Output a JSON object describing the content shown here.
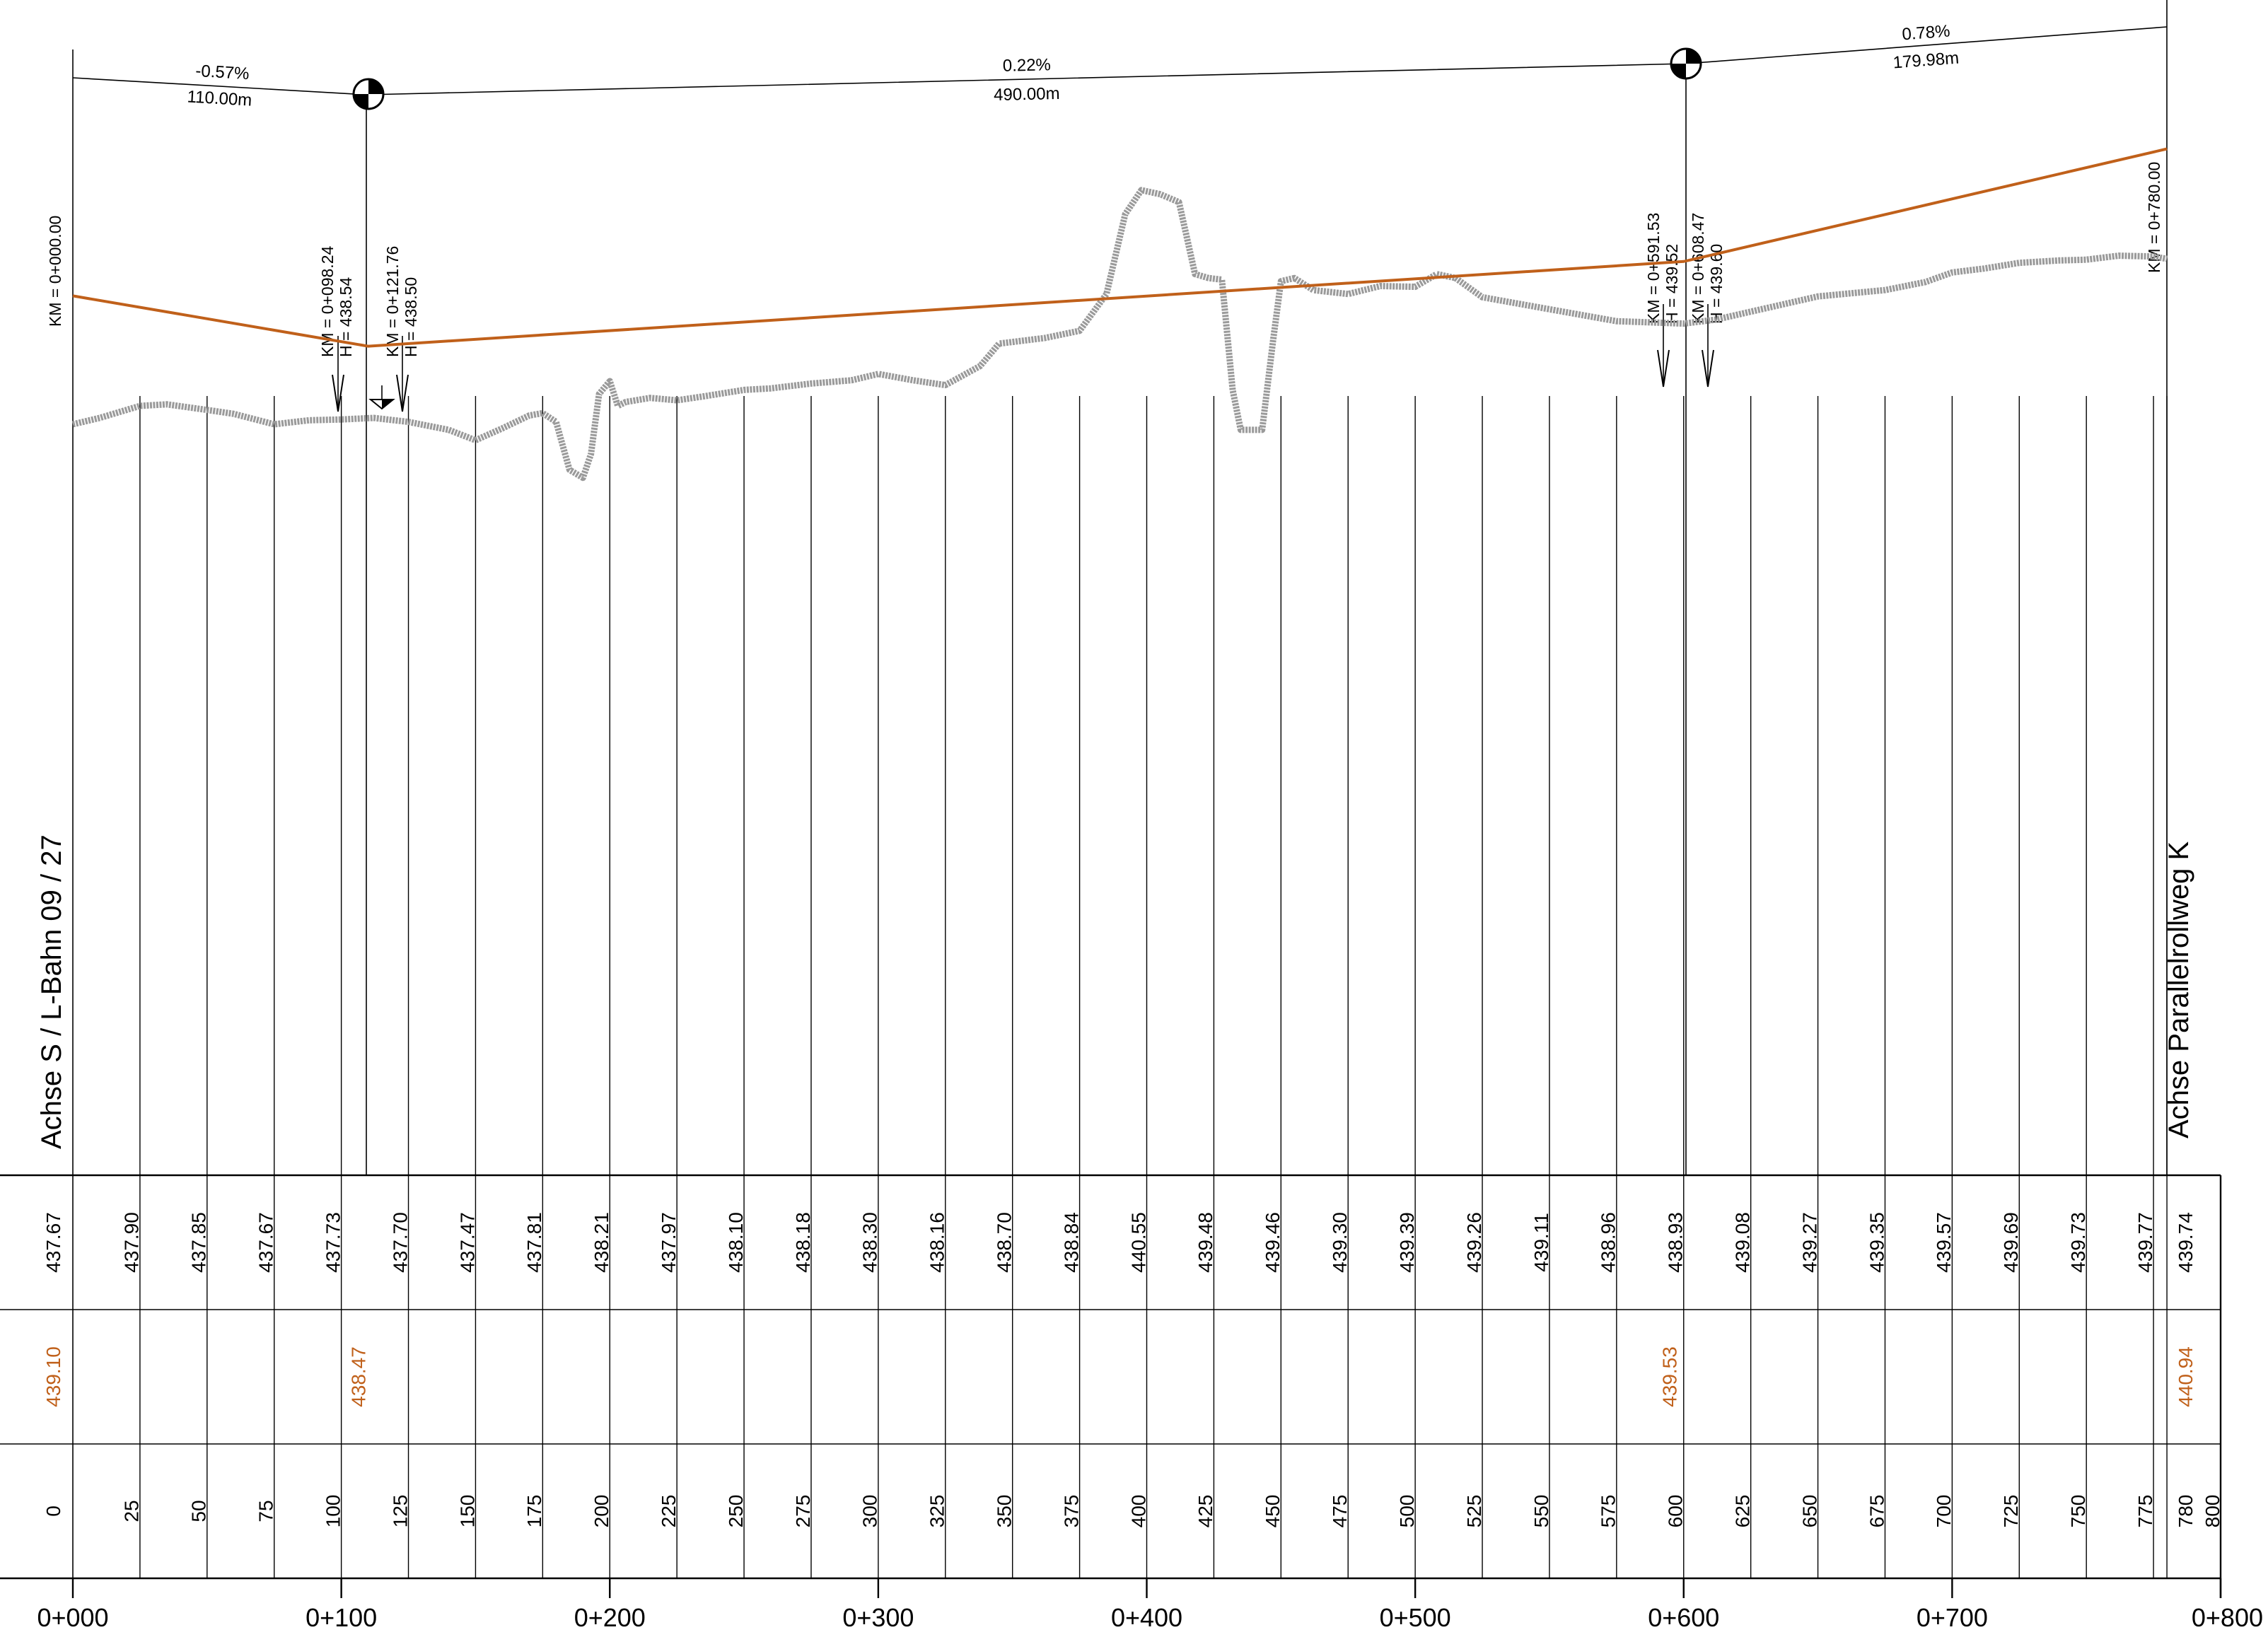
{
  "colors": {
    "design_line": "#c0601a",
    "terrain_line": "#9a9a9a",
    "lines": "#000000"
  },
  "grades": [
    {
      "grade": "-0.57%",
      "length": "110.00m"
    },
    {
      "grade": "0.22%",
      "length": "490.00m"
    },
    {
      "grade": "0.78%",
      "length": "179.98m"
    }
  ],
  "markers": [
    {
      "km": "KM = 0+000.00"
    },
    {
      "km": "KM = 0+098.24",
      "h": "H = 438.54"
    },
    {
      "km": "KM = 0+121.76",
      "h": "H = 438.50"
    },
    {
      "km": "KM = 0+591.53",
      "h": "H = 439.52"
    },
    {
      "km": "KM = 0+608.47",
      "h": "H = 439.60"
    },
    {
      "km": "KM = 0+780.00"
    }
  ],
  "axis_labels": {
    "left": "Achse S / L-Bahn 09 / 27",
    "right": "Achse Parallelrollweg K"
  },
  "chart_data": {
    "type": "line",
    "xlabel": "",
    "ylabel": "",
    "xlim": [
      0,
      800
    ],
    "ticks": [
      "0+000",
      "0+100",
      "0+200",
      "0+300",
      "0+400",
      "0+500",
      "0+600",
      "0+700",
      "0+800"
    ],
    "stations": [
      0,
      25,
      50,
      75,
      100,
      125,
      150,
      175,
      200,
      225,
      250,
      275,
      300,
      325,
      350,
      375,
      400,
      425,
      450,
      475,
      500,
      525,
      550,
      575,
      600,
      625,
      650,
      675,
      700,
      725,
      750,
      775,
      780
    ],
    "station_labels": [
      "0",
      "25",
      "50",
      "75",
      "100",
      "125",
      "150",
      "175",
      "200",
      "225",
      "250",
      "275",
      "300",
      "325",
      "350",
      "375",
      "400",
      "425",
      "450",
      "475",
      "500",
      "525",
      "550",
      "575",
      "600",
      "625",
      "650",
      "675",
      "700",
      "725",
      "750",
      "775",
      "780"
    ],
    "end_station_label": "800",
    "terrain_heights": [
      "437.67",
      "437.90",
      "437.85",
      "437.67",
      "437.73",
      "437.70",
      "437.47",
      "437.81",
      "438.21",
      "437.97",
      "438.10",
      "438.18",
      "438.30",
      "438.16",
      "438.70",
      "438.84",
      "440.55",
      "439.48",
      "439.46",
      "439.30",
      "439.39",
      "439.26",
      "439.11",
      "438.96",
      "438.93",
      "439.08",
      "439.27",
      "439.35",
      "439.57",
      "439.69",
      "439.73",
      "439.77",
      "439.74"
    ],
    "design_points": [
      {
        "station": 0,
        "height": 439.1,
        "label": "439.10"
      },
      {
        "station": 110,
        "height": 438.47,
        "label": "438.47"
      },
      {
        "station": 600,
        "height": 439.53,
        "label": "439.53"
      },
      {
        "station": 780,
        "height": 440.94,
        "label": "440.94"
      }
    ],
    "terrain_profile": [
      [
        0,
        437.67
      ],
      [
        10,
        437.75
      ],
      [
        25,
        437.9
      ],
      [
        35,
        437.92
      ],
      [
        50,
        437.85
      ],
      [
        60,
        437.8
      ],
      [
        75,
        437.67
      ],
      [
        88,
        437.72
      ],
      [
        100,
        437.73
      ],
      [
        112,
        437.75
      ],
      [
        125,
        437.7
      ],
      [
        140,
        437.6
      ],
      [
        150,
        437.47
      ],
      [
        160,
        437.62
      ],
      [
        170,
        437.78
      ],
      [
        175,
        437.81
      ],
      [
        180,
        437.7
      ],
      [
        185,
        437.1
      ],
      [
        190,
        437.0
      ],
      [
        193,
        437.3
      ],
      [
        196,
        438.05
      ],
      [
        200,
        438.21
      ],
      [
        203,
        437.9
      ],
      [
        206,
        437.95
      ],
      [
        215,
        438.0
      ],
      [
        225,
        437.97
      ],
      [
        235,
        438.02
      ],
      [
        250,
        438.1
      ],
      [
        260,
        438.12
      ],
      [
        275,
        438.18
      ],
      [
        290,
        438.22
      ],
      [
        300,
        438.3
      ],
      [
        313,
        438.22
      ],
      [
        325,
        438.16
      ],
      [
        338,
        438.4
      ],
      [
        345,
        438.68
      ],
      [
        350,
        438.7
      ],
      [
        362,
        438.75
      ],
      [
        375,
        438.84
      ],
      [
        385,
        439.3
      ],
      [
        392,
        440.3
      ],
      [
        398,
        440.6
      ],
      [
        405,
        440.55
      ],
      [
        412,
        440.45
      ],
      [
        418,
        439.55
      ],
      [
        423,
        439.5
      ],
      [
        428,
        439.48
      ],
      [
        432,
        438.1
      ],
      [
        435,
        437.6
      ],
      [
        443,
        437.6
      ],
      [
        447,
        438.7
      ],
      [
        450,
        439.46
      ],
      [
        455,
        439.5
      ],
      [
        462,
        439.35
      ],
      [
        475,
        439.3
      ],
      [
        487,
        439.4
      ],
      [
        500,
        439.39
      ],
      [
        508,
        439.55
      ],
      [
        515,
        439.5
      ],
      [
        525,
        439.26
      ],
      [
        550,
        439.11
      ],
      [
        575,
        438.96
      ],
      [
        600,
        438.93
      ],
      [
        612,
        438.98
      ],
      [
        625,
        439.08
      ],
      [
        650,
        439.27
      ],
      [
        675,
        439.35
      ],
      [
        690,
        439.45
      ],
      [
        700,
        439.57
      ],
      [
        712,
        439.62
      ],
      [
        725,
        439.69
      ],
      [
        740,
        439.72
      ],
      [
        750,
        439.73
      ],
      [
        762,
        439.78
      ],
      [
        775,
        439.77
      ],
      [
        780,
        439.74
      ]
    ]
  }
}
